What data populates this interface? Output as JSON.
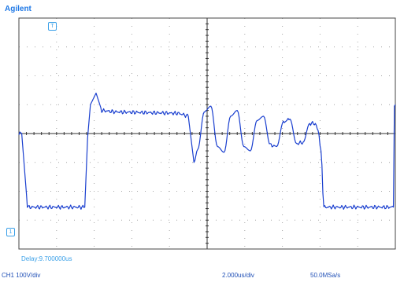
{
  "brand": "Agilent",
  "markers": {
    "trigger": "T",
    "channel": "1"
  },
  "readouts": {
    "delay": "Delay:9.700000us",
    "channel_scale": "CH1 100V/div",
    "time_scale": "2.000us/div",
    "sample_rate": "50.0MSa/s"
  },
  "colors": {
    "trace": "#1a3fcf",
    "grid_dots": "#a6a6a6",
    "axes": "#333333",
    "brand": "#1e78e6"
  },
  "chart_data": {
    "type": "line",
    "title": "",
    "xlabel": "",
    "ylabel": "",
    "x_unit": "us",
    "y_unit": "V",
    "xlim": [
      -10,
      10
    ],
    "ylim": [
      -400,
      400
    ],
    "grid": true,
    "series": [
      {
        "x": [
          -10.0,
          -9.85,
          -9.55,
          -9.5,
          -6.5,
          -6.35,
          -6.2,
          -5.9,
          -5.6,
          -4.9,
          -1.5,
          -1.0,
          -0.7,
          -0.5,
          -0.15,
          0.2,
          0.55,
          0.9,
          1.25,
          1.6,
          1.95,
          2.3,
          2.65,
          3.0,
          3.35,
          3.7,
          4.05,
          4.4,
          4.75,
          5.1,
          5.45,
          5.75,
          5.9,
          6.05,
          6.2,
          6.3,
          6.6,
          9.9,
          9.95,
          10.0
        ],
        "y": [
          0,
          0,
          -250,
          -255,
          -255,
          -15,
          100,
          140,
          80,
          75,
          70,
          60,
          -100,
          -55,
          75,
          95,
          -45,
          -65,
          60,
          80,
          -45,
          -60,
          45,
          60,
          -40,
          -45,
          40,
          50,
          -35,
          -30,
          35,
          35,
          10,
          -60,
          -255,
          -255,
          -255,
          -255,
          100,
          100
        ]
      }
    ]
  }
}
